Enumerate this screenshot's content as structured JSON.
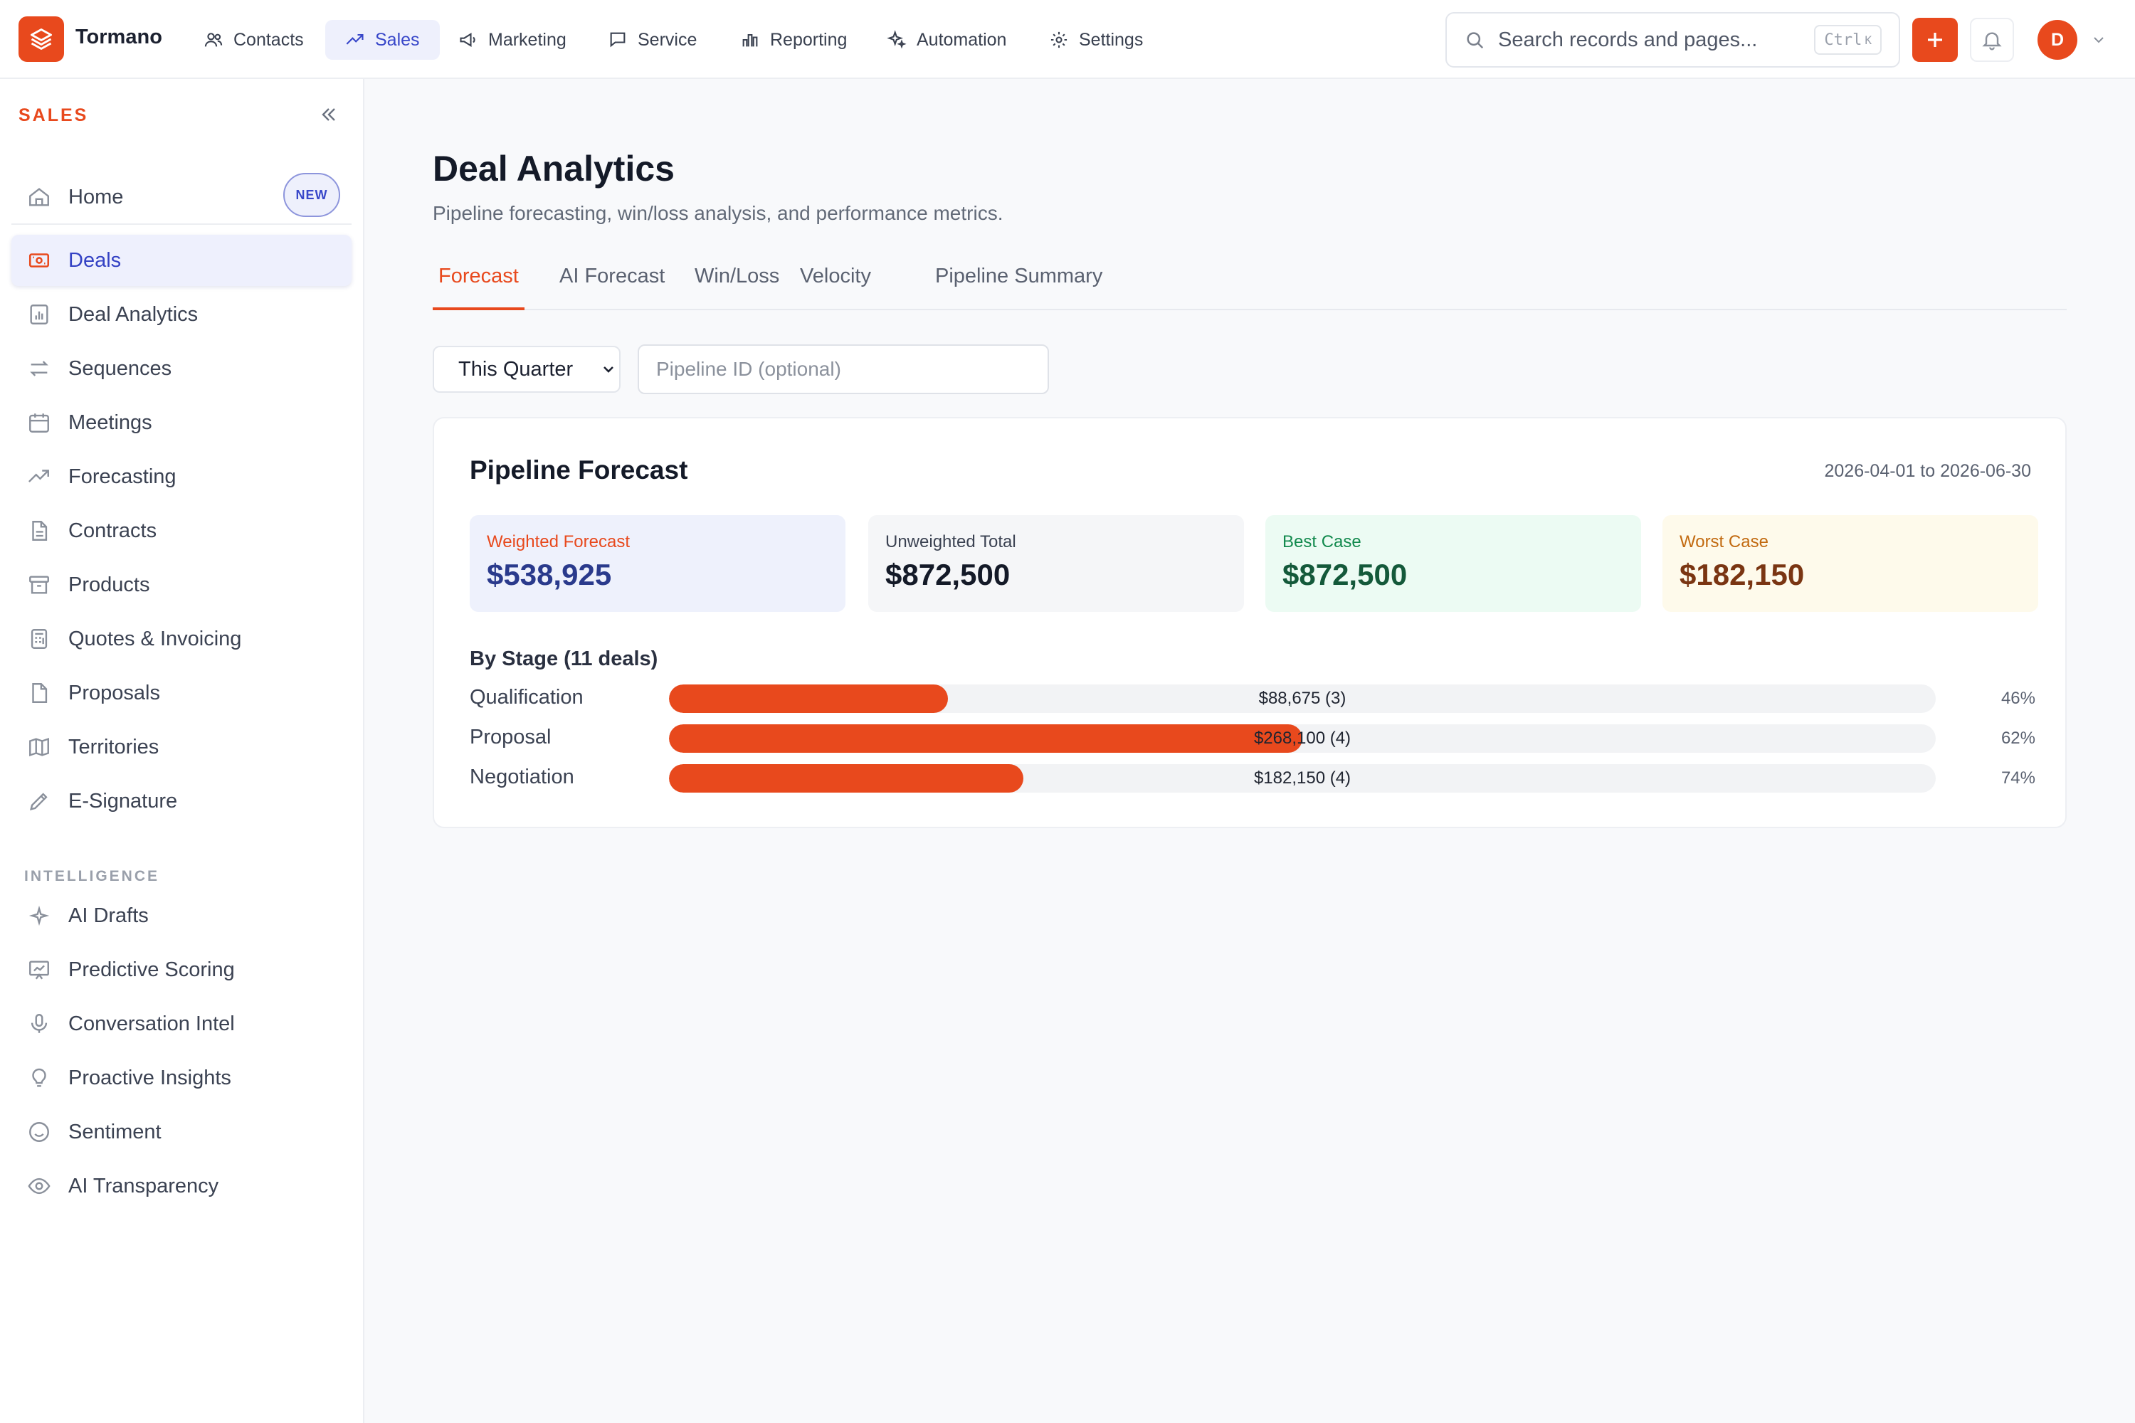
{
  "app": {
    "name": "Tormano"
  },
  "nav": [
    {
      "label": "Contacts",
      "icon": "users-icon"
    },
    {
      "label": "Sales",
      "icon": "trend-icon",
      "active": true
    },
    {
      "label": "Marketing",
      "icon": "megaphone-icon"
    },
    {
      "label": "Service",
      "icon": "chat-icon"
    },
    {
      "label": "Reporting",
      "icon": "bar-chart-icon"
    },
    {
      "label": "Automation",
      "icon": "sparkle-icon"
    },
    {
      "label": "Settings",
      "icon": "gear-icon"
    }
  ],
  "search": {
    "placeholder": "Search records and pages...",
    "shortcut_key": "Ctrl",
    "shortcut_letter": "K"
  },
  "user": {
    "initial": "D"
  },
  "sidebar": {
    "title": "SALES",
    "home": {
      "label": "Home",
      "badge": "NEW"
    },
    "items": [
      {
        "label": "Deals",
        "icon": "deal-icon",
        "active": true
      },
      {
        "label": "Deal Analytics",
        "icon": "analytics-icon"
      },
      {
        "label": "Sequences",
        "icon": "arrows-icon"
      },
      {
        "label": "Meetings",
        "icon": "calendar-icon"
      },
      {
        "label": "Forecasting",
        "icon": "trend-icon"
      },
      {
        "label": "Contracts",
        "icon": "document-icon"
      },
      {
        "label": "Products",
        "icon": "box-icon"
      },
      {
        "label": "Quotes & Invoicing",
        "icon": "calculator-icon"
      },
      {
        "label": "Proposals",
        "icon": "file-icon"
      },
      {
        "label": "Territories",
        "icon": "map-icon"
      },
      {
        "label": "E-Signature",
        "icon": "pen-icon"
      }
    ],
    "section_title": "INTELLIGENCE",
    "intel_items": [
      {
        "label": "AI Drafts",
        "icon": "sparkle-icon"
      },
      {
        "label": "Predictive Scoring",
        "icon": "presentation-icon"
      },
      {
        "label": "Conversation Intel",
        "icon": "mic-icon"
      },
      {
        "label": "Proactive Insights",
        "icon": "lightbulb-icon"
      },
      {
        "label": "Sentiment",
        "icon": "smile-icon"
      },
      {
        "label": "AI Transparency",
        "icon": "eye-icon"
      }
    ]
  },
  "page": {
    "title": "Deal Analytics",
    "subtitle": "Pipeline forecasting, win/loss analysis, and performance metrics.",
    "tabs": [
      {
        "label": "Forecast",
        "active": true
      },
      {
        "label": "AI Forecast"
      },
      {
        "label": "Win/Loss"
      },
      {
        "label": "Velocity"
      },
      {
        "label": "Pipeline Summary"
      }
    ],
    "period": {
      "selected": "This Quarter"
    },
    "pipeline_input": {
      "placeholder": "Pipeline ID (optional)",
      "value": ""
    }
  },
  "forecast": {
    "title": "Pipeline Forecast",
    "range": "2026-04-01 to 2026-06-30",
    "kpis": [
      {
        "label": "Weighted Forecast",
        "value": "$538,925",
        "bg": "#eef1fc",
        "label_color": "#e8491d",
        "value_color": "#2a3a8c"
      },
      {
        "label": "Unweighted Total",
        "value": "$872,500",
        "bg": "#f5f6f8",
        "label_color": "#3b4252",
        "value_color": "#141a28"
      },
      {
        "label": "Best Case",
        "value": "$872,500",
        "bg": "#ecfbf3",
        "label_color": "#138a4e",
        "value_color": "#14593a"
      },
      {
        "label": "Worst Case",
        "value": "$182,150",
        "bg": "#fefaeb",
        "label_color": "#c26a10",
        "value_color": "#7a3512"
      }
    ],
    "stage_heading": "By Stage (11 deals)",
    "stages": [
      {
        "name": "Qualification",
        "amount": "$88,675 (3)",
        "percent": "46%",
        "fill": 0.22
      },
      {
        "name": "Proposal",
        "amount": "$268,100 (4)",
        "percent": "62%",
        "fill": 0.5
      },
      {
        "name": "Negotiation",
        "amount": "$182,150 (4)",
        "percent": "74%",
        "fill": 0.28
      }
    ]
  },
  "colors": {
    "accent": "#e8491d",
    "active_nav": "#3847c9"
  }
}
